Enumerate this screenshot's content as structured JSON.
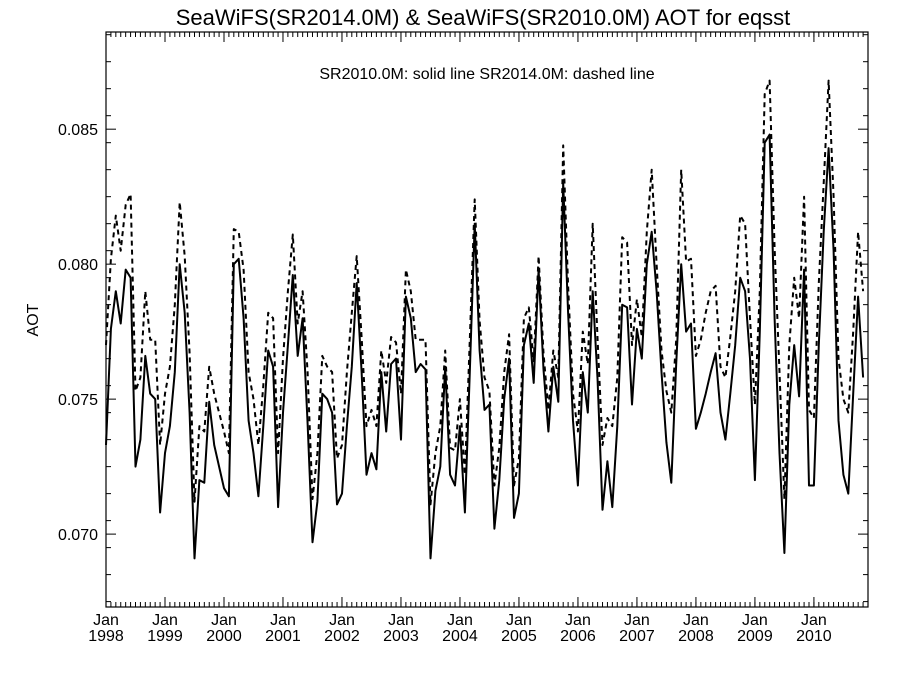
{
  "chart_data": {
    "type": "line",
    "title": "SeaWiFS(SR2014.0M) & SeaWiFS(SR2010.0M)  AOT for eqsst",
    "ylabel": "AOT",
    "xlabel": "",
    "legend_text": "SR2010.0M: solid line   SR2014.0M: dashed line",
    "ylim": [
      0.0673,
      0.0886
    ],
    "yticks": [
      0.07,
      0.075,
      0.08,
      0.085
    ],
    "ytick_labels": [
      "0.070",
      "0.075",
      "0.080",
      "0.085"
    ],
    "xlim": [
      1998.0,
      2010.9167
    ],
    "xtick_years": [
      1998,
      1999,
      2000,
      2001,
      2002,
      2003,
      2004,
      2005,
      2006,
      2007,
      2008,
      2009,
      2010
    ],
    "xtick_month_label": "Jan",
    "grid": false,
    "series": [
      {
        "name": "SR2010.0M",
        "style": "solid",
        "color": "#000000",
        "start": 1998.0,
        "step": 0.08333,
        "values": [
          0.0733,
          0.0776,
          0.079,
          0.0778,
          0.0798,
          0.0795,
          0.0725,
          0.0735,
          0.0766,
          0.0752,
          0.075,
          0.0708,
          0.073,
          0.074,
          0.076,
          0.08,
          0.0782,
          0.0745,
          0.0691,
          0.072,
          0.0719,
          0.0749,
          0.0733,
          0.0725,
          0.0717,
          0.0714,
          0.08,
          0.0802,
          0.078,
          0.0742,
          0.073,
          0.0714,
          0.074,
          0.0768,
          0.0762,
          0.071,
          0.0745,
          0.077,
          0.0796,
          0.0766,
          0.078,
          0.0741,
          0.0697,
          0.0712,
          0.0752,
          0.075,
          0.0745,
          0.0711,
          0.0715,
          0.074,
          0.0762,
          0.0793,
          0.076,
          0.0722,
          0.073,
          0.0724,
          0.076,
          0.0738,
          0.0763,
          0.0765,
          0.0735,
          0.0788,
          0.078,
          0.076,
          0.0763,
          0.0761,
          0.0691,
          0.0716,
          0.0725,
          0.0762,
          0.0722,
          0.0718,
          0.074,
          0.0708,
          0.076,
          0.0815,
          0.0768,
          0.0746,
          0.0748,
          0.0702,
          0.072,
          0.075,
          0.0765,
          0.0706,
          0.0715,
          0.077,
          0.0778,
          0.0756,
          0.0798,
          0.0761,
          0.0738,
          0.0762,
          0.0749,
          0.083,
          0.0782,
          0.0742,
          0.0718,
          0.076,
          0.0745,
          0.079,
          0.0757,
          0.0709,
          0.0727,
          0.071,
          0.074,
          0.0785,
          0.0784,
          0.0748,
          0.0776,
          0.0765,
          0.08,
          0.0812,
          0.079,
          0.076,
          0.0734,
          0.0719,
          0.0763,
          0.08,
          0.0775,
          0.0778,
          0.0739,
          0.0745,
          0.0752,
          0.076,
          0.0767,
          0.0745,
          0.0735,
          0.0752,
          0.077,
          0.0795,
          0.079,
          0.0765,
          0.072,
          0.0775,
          0.0845,
          0.0848,
          0.078,
          0.073,
          0.0693,
          0.0748,
          0.077,
          0.0751,
          0.0798,
          0.0718,
          0.0718,
          0.077,
          0.0812,
          0.0843,
          0.0805,
          0.0742,
          0.0722,
          0.0715,
          0.0752,
          0.0788,
          0.0758
        ]
      },
      {
        "name": "SR2014.0M",
        "style": "dashed",
        "color": "#000000",
        "start": 1998.0,
        "step": 0.08333,
        "values": [
          0.077,
          0.0802,
          0.0818,
          0.0805,
          0.0822,
          0.0826,
          0.0753,
          0.0758,
          0.079,
          0.0772,
          0.0772,
          0.0733,
          0.0752,
          0.0762,
          0.0785,
          0.0823,
          0.0803,
          0.0767,
          0.0712,
          0.074,
          0.0738,
          0.0762,
          0.0752,
          0.0745,
          0.0738,
          0.073,
          0.0813,
          0.0812,
          0.0798,
          0.076,
          0.075,
          0.0733,
          0.0755,
          0.0782,
          0.078,
          0.073,
          0.0765,
          0.079,
          0.0811,
          0.0778,
          0.079,
          0.076,
          0.0713,
          0.073,
          0.0766,
          0.0762,
          0.076,
          0.0728,
          0.0733,
          0.076,
          0.0782,
          0.0803,
          0.0773,
          0.074,
          0.0746,
          0.074,
          0.0768,
          0.0756,
          0.0773,
          0.0771,
          0.0752,
          0.0798,
          0.079,
          0.0772,
          0.0772,
          0.0772,
          0.0711,
          0.073,
          0.074,
          0.0768,
          0.0732,
          0.0731,
          0.075,
          0.0722,
          0.0772,
          0.0824,
          0.0779,
          0.0758,
          0.0753,
          0.0718,
          0.0732,
          0.076,
          0.0774,
          0.0718,
          0.0728,
          0.078,
          0.0784,
          0.0764,
          0.0803,
          0.0767,
          0.0746,
          0.0768,
          0.0758,
          0.0844,
          0.0792,
          0.0752,
          0.0738,
          0.0775,
          0.0763,
          0.0815,
          0.0772,
          0.0733,
          0.0743,
          0.074,
          0.0758,
          0.081,
          0.0808,
          0.077,
          0.0787,
          0.0773,
          0.0812,
          0.0835,
          0.08,
          0.0768,
          0.0753,
          0.0745,
          0.0772,
          0.0835,
          0.0801,
          0.0802,
          0.0766,
          0.0772,
          0.0782,
          0.079,
          0.0792,
          0.0762,
          0.0758,
          0.0773,
          0.079,
          0.0818,
          0.0815,
          0.078,
          0.0748,
          0.079,
          0.0863,
          0.0868,
          0.0806,
          0.076,
          0.0713,
          0.077,
          0.0795,
          0.078,
          0.0825,
          0.0746,
          0.0743,
          0.0793,
          0.083,
          0.0868,
          0.0825,
          0.0765,
          0.075,
          0.0745,
          0.0775,
          0.0812,
          0.079
        ]
      }
    ]
  }
}
